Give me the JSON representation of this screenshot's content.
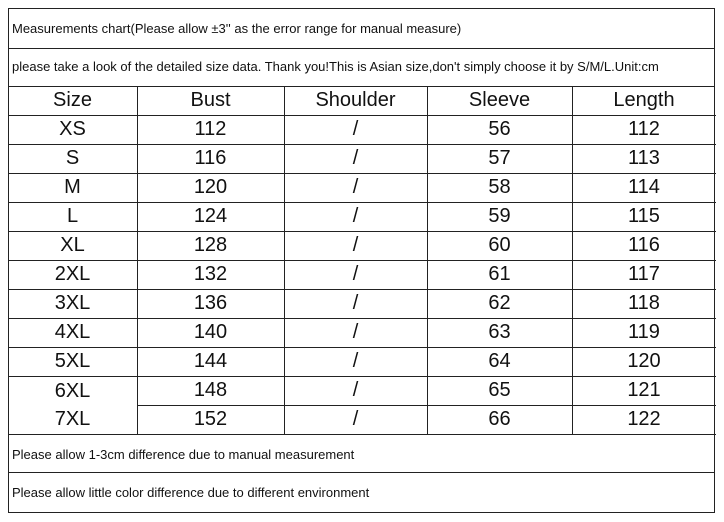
{
  "header": {
    "title": "Measurements chart(Please allow ±3'' as the error range for manual measure)",
    "note": "please take a look of the detailed size data. Thank you!This is Asian size,don't simply choose it by S/M/L.Unit:cm"
  },
  "table": {
    "columns": [
      "Size",
      "Bust",
      "Shoulder",
      "Sleeve",
      "Length"
    ],
    "rows": [
      [
        "XS",
        "112",
        "/",
        "56",
        "112"
      ],
      [
        "S",
        "116",
        "/",
        "57",
        "113"
      ],
      [
        "M",
        "120",
        "/",
        "58",
        "114"
      ],
      [
        "L",
        "124",
        "/",
        "59",
        "115"
      ],
      [
        "XL",
        "128",
        "/",
        "60",
        "116"
      ],
      [
        "2XL",
        "132",
        "/",
        "61",
        "117"
      ],
      [
        "3XL",
        "136",
        "/",
        "62",
        "118"
      ],
      [
        "4XL",
        "140",
        "/",
        "63",
        "119"
      ],
      [
        "5XL",
        "144",
        "/",
        "64",
        "120"
      ],
      [
        "6XL",
        "148",
        "/",
        "65",
        "121"
      ],
      [
        "7XL",
        "152",
        "/",
        "66",
        "122"
      ]
    ]
  },
  "footer": {
    "notes": [
      "Please allow 1-3cm difference due to manual measurement",
      "Please allow little color difference due to different environment"
    ]
  }
}
